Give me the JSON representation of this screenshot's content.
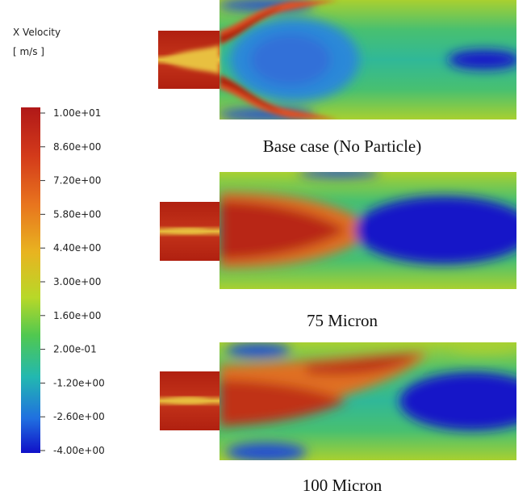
{
  "legend": {
    "title": "X Velocity",
    "unit": "[ m/s ]",
    "ticks": [
      "1.00e+01",
      "8.60e+00",
      "7.20e+00",
      "5.80e+00",
      "4.40e+00",
      "3.00e+00",
      "1.60e+00",
      "2.00e-01",
      "-1.20e+00",
      "-2.60e+00",
      "-4.00e+00"
    ]
  },
  "panels": [
    {
      "caption": "Base case (No Particle)"
    },
    {
      "caption": "75 Micron"
    },
    {
      "caption": "100 Micron"
    }
  ]
}
